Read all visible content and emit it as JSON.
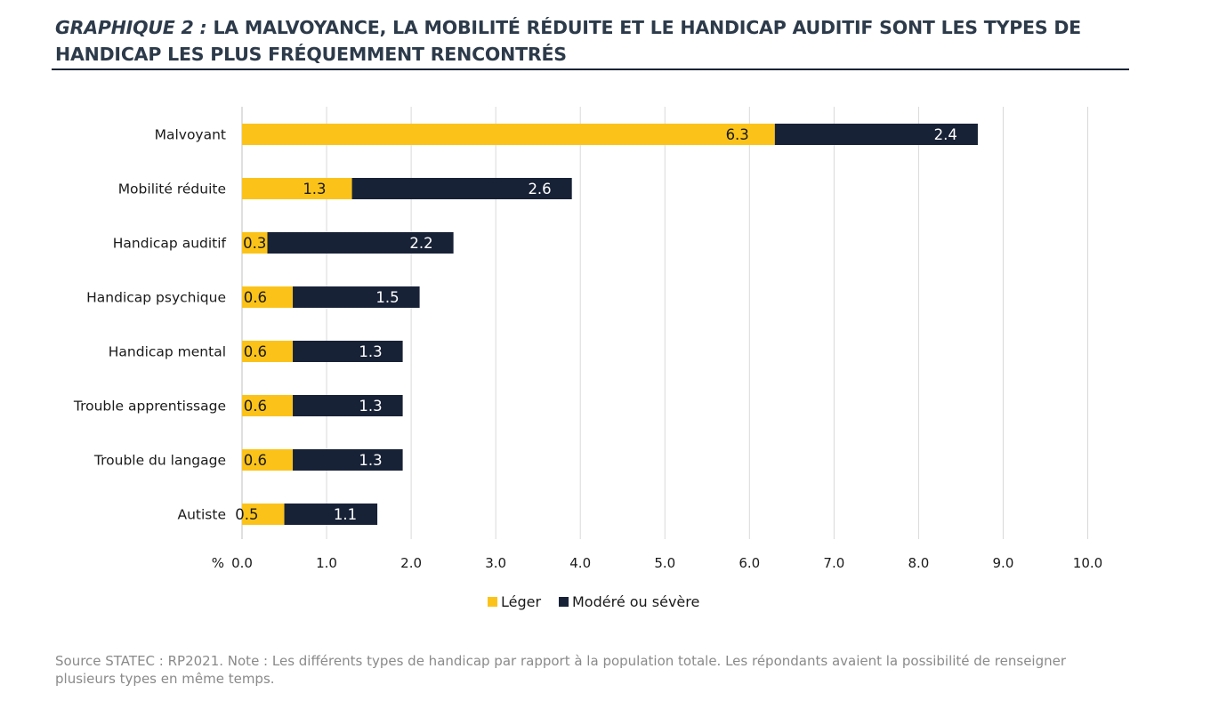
{
  "header": {
    "title_lead": "GRAPHIQUE 2 :",
    "title_rest": "LA MALVOYANCE, LA MOBILITÉ RÉDUITE ET LE HANDICAP AUDITIF SONT LES TYPES DE HANDICAP LES PLUS FRÉQUEMMENT RENCONTRÉS"
  },
  "footer": {
    "source": "Source STATEC : RP2021. Note : Les différents types de handicap par rapport à la population totale. Les répondants avaient la possibilité de renseigner plusieurs types en même temps."
  },
  "colors": {
    "leger": "#fbc31a",
    "modere": "#182237",
    "grid": "#d9d9d9",
    "text": "#1a1a1a"
  },
  "chart_data": {
    "type": "bar",
    "orientation": "horizontal",
    "stacked": true,
    "categories": [
      "Malvoyant",
      "Mobilité réduite",
      "Handicap auditif",
      "Handicap psychique",
      "Handicap mental",
      "Trouble apprentissage",
      "Trouble du langage",
      "Autiste"
    ],
    "series": [
      {
        "name": "Léger",
        "values": [
          6.3,
          1.3,
          0.3,
          0.6,
          0.6,
          0.6,
          0.6,
          0.5
        ]
      },
      {
        "name": "Modéré ou sévère",
        "values": [
          2.4,
          2.6,
          2.2,
          1.5,
          1.3,
          1.3,
          1.3,
          1.1
        ]
      }
    ],
    "xlim": [
      0,
      10
    ],
    "x_ticks": [
      "0.0",
      "1.0",
      "2.0",
      "3.0",
      "4.0",
      "5.0",
      "6.0",
      "7.0",
      "8.0",
      "9.0",
      "10.0"
    ],
    "xunit": "%",
    "grid": true,
    "legend": "bottom-center"
  }
}
